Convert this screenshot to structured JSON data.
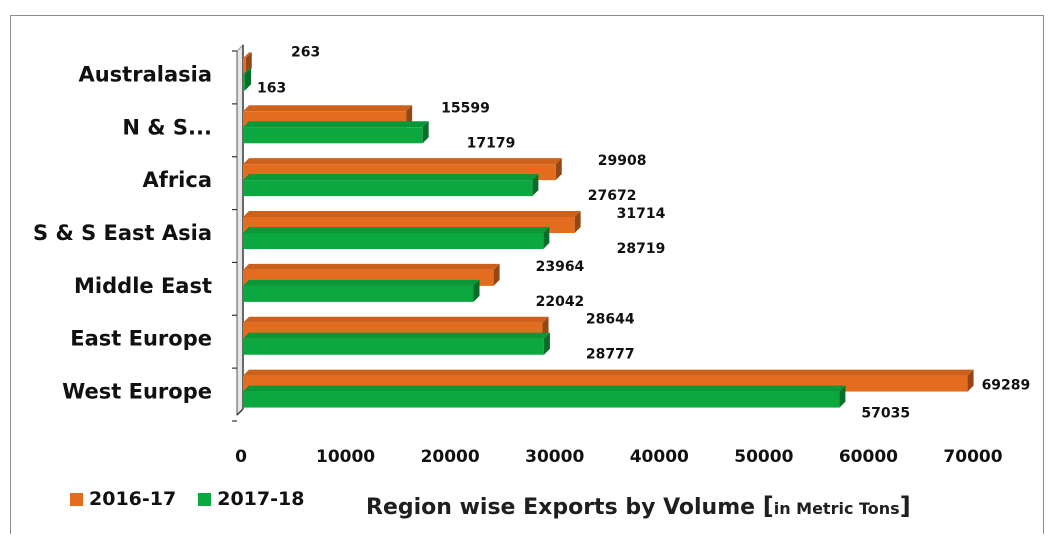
{
  "chart_data": {
    "type": "bar",
    "orientation": "horizontal",
    "categories": [
      "Australasia",
      "N & S...",
      "Africa",
      "S & S East Asia",
      "Middle East",
      "East Europe",
      "West Europe"
    ],
    "series": [
      {
        "name": "2016-17",
        "color": "#e46c1f",
        "values": [
          263,
          15599,
          29908,
          31714,
          23964,
          28644,
          69289
        ]
      },
      {
        "name": "2017-18",
        "color": "#0aa83e",
        "values": [
          163,
          17179,
          27672,
          28719,
          22042,
          28777,
          57035
        ]
      }
    ],
    "xlim": [
      0,
      70000
    ],
    "x_ticks": [
      "0",
      "10000",
      "20000",
      "30000",
      "40000",
      "50000",
      "60000",
      "70000"
    ],
    "grid": false,
    "legend_position": "bottom-left",
    "title": {
      "main": "Region wise Exports by Volume",
      "bracket_open": "[",
      "unit": "in Metric Tons",
      "bracket_close": "]"
    }
  }
}
